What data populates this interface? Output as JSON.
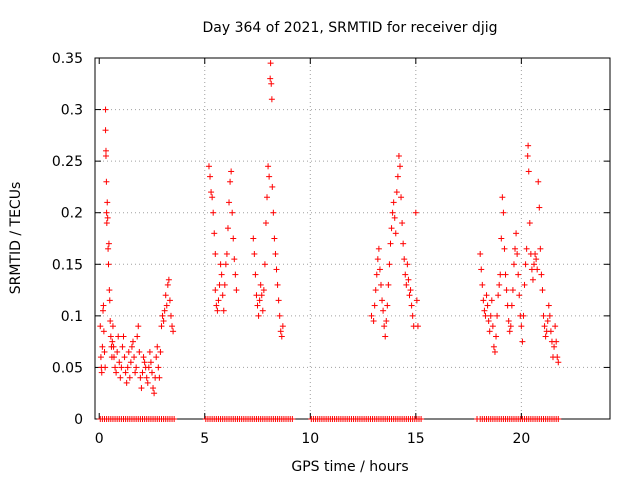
{
  "chart_data": {
    "type": "scatter",
    "title": "Day 364 of 2021, SRMTID for receiver djig",
    "xlabel": "GPS time / hours",
    "ylabel": "SRMTID / TECUs",
    "xlim": [
      -0.2,
      24.2
    ],
    "ylim": [
      0,
      0.35
    ],
    "xticks": [
      0,
      5,
      10,
      15,
      20
    ],
    "xtick_labels": [
      "0",
      "5",
      "10",
      "15",
      "20"
    ],
    "yticks": [
      0,
      0.05,
      0.1,
      0.15,
      0.2,
      0.25,
      0.3,
      0.35
    ],
    "ytick_labels": [
      "0",
      "0.05",
      "0.1",
      "0.15",
      "0.2",
      "0.25",
      "0.3",
      "0.35"
    ],
    "grid": true,
    "marker": "+",
    "marker_color": "#ff0000",
    "series": [
      {
        "name": "SRMTID",
        "points": [
          [
            0.05,
            0.09
          ],
          [
            0.08,
            0.06
          ],
          [
            0.1,
            0.05
          ],
          [
            0.12,
            0.045
          ],
          [
            0.15,
            0.07
          ],
          [
            0.18,
            0.105
          ],
          [
            0.2,
            0.11
          ],
          [
            0.22,
            0.085
          ],
          [
            0.25,
            0.065
          ],
          [
            0.28,
            0.05
          ],
          [
            0.3,
            0.3
          ],
          [
            0.3,
            0.28
          ],
          [
            0.32,
            0.26
          ],
          [
            0.32,
            0.255
          ],
          [
            0.34,
            0.23
          ],
          [
            0.35,
            0.2
          ],
          [
            0.36,
            0.19
          ],
          [
            0.38,
            0.21
          ],
          [
            0.4,
            0.195
          ],
          [
            0.42,
            0.165
          ],
          [
            0.44,
            0.15
          ],
          [
            0.46,
            0.17
          ],
          [
            0.48,
            0.125
          ],
          [
            0.5,
            0.115
          ],
          [
            0.52,
            0.095
          ],
          [
            0.55,
            0.08
          ],
          [
            0.58,
            0.07
          ],
          [
            0.6,
            0.06
          ],
          [
            0.62,
            0.075
          ],
          [
            0.65,
            0.09
          ],
          [
            0.68,
            0.07
          ],
          [
            0.7,
            0.06
          ],
          [
            0.75,
            0.05
          ],
          [
            0.8,
            0.045
          ],
          [
            0.85,
            0.065
          ],
          [
            0.9,
            0.08
          ],
          [
            0.95,
            0.055
          ],
          [
            1.0,
            0.04
          ],
          [
            1.05,
            0.05
          ],
          [
            1.1,
            0.07
          ],
          [
            1.15,
            0.08
          ],
          [
            1.2,
            0.06
          ],
          [
            1.25,
            0.045
          ],
          [
            1.3,
            0.035
          ],
          [
            1.35,
            0.05
          ],
          [
            1.4,
            0.065
          ],
          [
            1.45,
            0.04
          ],
          [
            1.5,
            0.055
          ],
          [
            1.55,
            0.07
          ],
          [
            1.6,
            0.075
          ],
          [
            1.65,
            0.06
          ],
          [
            1.7,
            0.045
          ],
          [
            1.75,
            0.05
          ],
          [
            1.8,
            0.08
          ],
          [
            1.85,
            0.09
          ],
          [
            1.9,
            0.065
          ],
          [
            1.95,
            0.04
          ],
          [
            2.0,
            0.03
          ],
          [
            2.05,
            0.045
          ],
          [
            2.1,
            0.06
          ],
          [
            2.15,
            0.055
          ],
          [
            2.2,
            0.05
          ],
          [
            2.25,
            0.04
          ],
          [
            2.3,
            0.035
          ],
          [
            2.35,
            0.05
          ],
          [
            2.4,
            0.065
          ],
          [
            2.45,
            0.055
          ],
          [
            2.5,
            0.045
          ],
          [
            2.55,
            0.03
          ],
          [
            2.6,
            0.025
          ],
          [
            2.65,
            0.04
          ],
          [
            2.7,
            0.06
          ],
          [
            2.75,
            0.07
          ],
          [
            2.8,
            0.05
          ],
          [
            2.85,
            0.04
          ],
          [
            2.9,
            0.065
          ],
          [
            2.95,
            0.09
          ],
          [
            3.0,
            0.1
          ],
          [
            3.05,
            0.095
          ],
          [
            3.1,
            0.105
          ],
          [
            3.15,
            0.12
          ],
          [
            3.2,
            0.11
          ],
          [
            3.25,
            0.13
          ],
          [
            3.3,
            0.135
          ],
          [
            3.35,
            0.115
          ],
          [
            3.4,
            0.1
          ],
          [
            3.45,
            0.09
          ],
          [
            3.5,
            0.085
          ],
          [
            5.2,
            0.245
          ],
          [
            5.25,
            0.235
          ],
          [
            5.3,
            0.22
          ],
          [
            5.35,
            0.215
          ],
          [
            5.4,
            0.2
          ],
          [
            5.45,
            0.18
          ],
          [
            5.5,
            0.16
          ],
          [
            5.5,
            0.125
          ],
          [
            5.55,
            0.11
          ],
          [
            5.6,
            0.105
          ],
          [
            5.65,
            0.115
          ],
          [
            5.7,
            0.13
          ],
          [
            5.75,
            0.15
          ],
          [
            5.8,
            0.14
          ],
          [
            5.85,
            0.12
          ],
          [
            5.9,
            0.105
          ],
          [
            5.95,
            0.13
          ],
          [
            6.0,
            0.15
          ],
          [
            6.05,
            0.16
          ],
          [
            6.1,
            0.185
          ],
          [
            6.15,
            0.21
          ],
          [
            6.2,
            0.23
          ],
          [
            6.25,
            0.24
          ],
          [
            6.3,
            0.2
          ],
          [
            6.35,
            0.175
          ],
          [
            6.4,
            0.155
          ],
          [
            6.45,
            0.14
          ],
          [
            6.5,
            0.125
          ],
          [
            7.3,
            0.175
          ],
          [
            7.35,
            0.16
          ],
          [
            7.4,
            0.14
          ],
          [
            7.45,
            0.12
          ],
          [
            7.5,
            0.11
          ],
          [
            7.55,
            0.1
          ],
          [
            7.6,
            0.115
          ],
          [
            7.65,
            0.13
          ],
          [
            7.7,
            0.12
          ],
          [
            7.75,
            0.105
          ],
          [
            7.8,
            0.125
          ],
          [
            7.85,
            0.15
          ],
          [
            7.9,
            0.19
          ],
          [
            7.95,
            0.215
          ],
          [
            8.0,
            0.245
          ],
          [
            8.05,
            0.235
          ],
          [
            8.1,
            0.33
          ],
          [
            8.12,
            0.345
          ],
          [
            8.15,
            0.325
          ],
          [
            8.18,
            0.31
          ],
          [
            8.2,
            0.225
          ],
          [
            8.25,
            0.2
          ],
          [
            8.3,
            0.175
          ],
          [
            8.35,
            0.16
          ],
          [
            8.4,
            0.145
          ],
          [
            8.45,
            0.13
          ],
          [
            8.5,
            0.115
          ],
          [
            8.55,
            0.1
          ],
          [
            8.6,
            0.085
          ],
          [
            8.65,
            0.08
          ],
          [
            8.7,
            0.09
          ],
          [
            12.9,
            0.1
          ],
          [
            13.0,
            0.095
          ],
          [
            13.05,
            0.11
          ],
          [
            13.1,
            0.125
          ],
          [
            13.15,
            0.14
          ],
          [
            13.2,
            0.155
          ],
          [
            13.25,
            0.165
          ],
          [
            13.3,
            0.145
          ],
          [
            13.35,
            0.13
          ],
          [
            13.4,
            0.115
          ],
          [
            13.45,
            0.105
          ],
          [
            13.5,
            0.09
          ],
          [
            13.55,
            0.08
          ],
          [
            13.6,
            0.095
          ],
          [
            13.65,
            0.11
          ],
          [
            13.7,
            0.13
          ],
          [
            13.75,
            0.15
          ],
          [
            13.8,
            0.17
          ],
          [
            13.85,
            0.185
          ],
          [
            13.9,
            0.2
          ],
          [
            13.95,
            0.21
          ],
          [
            14.0,
            0.195
          ],
          [
            14.05,
            0.18
          ],
          [
            14.1,
            0.22
          ],
          [
            14.15,
            0.235
          ],
          [
            14.2,
            0.255
          ],
          [
            14.25,
            0.245
          ],
          [
            14.3,
            0.215
          ],
          [
            14.35,
            0.19
          ],
          [
            14.4,
            0.17
          ],
          [
            14.45,
            0.155
          ],
          [
            14.5,
            0.14
          ],
          [
            14.55,
            0.13
          ],
          [
            14.6,
            0.15
          ],
          [
            14.65,
            0.135
          ],
          [
            14.7,
            0.12
          ],
          [
            14.75,
            0.125
          ],
          [
            14.8,
            0.11
          ],
          [
            14.85,
            0.1
          ],
          [
            14.9,
            0.09
          ],
          [
            15.0,
            0.2
          ],
          [
            15.05,
            0.115
          ],
          [
            15.1,
            0.09
          ],
          [
            18.05,
            0.16
          ],
          [
            18.1,
            0.145
          ],
          [
            18.15,
            0.13
          ],
          [
            18.2,
            0.115
          ],
          [
            18.25,
            0.105
          ],
          [
            18.3,
            0.1
          ],
          [
            18.35,
            0.12
          ],
          [
            18.4,
            0.11
          ],
          [
            18.45,
            0.095
          ],
          [
            18.5,
            0.085
          ],
          [
            18.55,
            0.1
          ],
          [
            18.6,
            0.115
          ],
          [
            18.65,
            0.09
          ],
          [
            18.7,
            0.07
          ],
          [
            18.75,
            0.065
          ],
          [
            18.8,
            0.08
          ],
          [
            18.85,
            0.1
          ],
          [
            18.9,
            0.12
          ],
          [
            18.95,
            0.13
          ],
          [
            19.0,
            0.14
          ],
          [
            19.05,
            0.175
          ],
          [
            19.1,
            0.215
          ],
          [
            19.15,
            0.2
          ],
          [
            19.2,
            0.165
          ],
          [
            19.25,
            0.14
          ],
          [
            19.3,
            0.125
          ],
          [
            19.35,
            0.11
          ],
          [
            19.4,
            0.095
          ],
          [
            19.45,
            0.085
          ],
          [
            19.5,
            0.09
          ],
          [
            19.55,
            0.11
          ],
          [
            19.6,
            0.125
          ],
          [
            19.65,
            0.15
          ],
          [
            19.7,
            0.165
          ],
          [
            19.75,
            0.18
          ],
          [
            19.8,
            0.16
          ],
          [
            19.85,
            0.14
          ],
          [
            19.9,
            0.12
          ],
          [
            19.95,
            0.1
          ],
          [
            20.0,
            0.09
          ],
          [
            20.05,
            0.075
          ],
          [
            20.1,
            0.1
          ],
          [
            20.15,
            0.13
          ],
          [
            20.2,
            0.15
          ],
          [
            20.25,
            0.165
          ],
          [
            20.3,
            0.255
          ],
          [
            20.32,
            0.265
          ],
          [
            20.35,
            0.24
          ],
          [
            20.4,
            0.19
          ],
          [
            20.45,
            0.16
          ],
          [
            20.5,
            0.145
          ],
          [
            20.55,
            0.135
          ],
          [
            20.6,
            0.15
          ],
          [
            20.65,
            0.16
          ],
          [
            20.7,
            0.155
          ],
          [
            20.75,
            0.145
          ],
          [
            20.8,
            0.23
          ],
          [
            20.85,
            0.205
          ],
          [
            20.9,
            0.165
          ],
          [
            20.95,
            0.14
          ],
          [
            21.0,
            0.125
          ],
          [
            21.05,
            0.1
          ],
          [
            21.1,
            0.09
          ],
          [
            21.15,
            0.08
          ],
          [
            21.2,
            0.085
          ],
          [
            21.25,
            0.095
          ],
          [
            21.3,
            0.11
          ],
          [
            21.35,
            0.1
          ],
          [
            21.4,
            0.085
          ],
          [
            21.45,
            0.075
          ],
          [
            21.5,
            0.06
          ],
          [
            21.55,
            0.07
          ],
          [
            21.6,
            0.09
          ],
          [
            21.65,
            0.075
          ],
          [
            21.7,
            0.06
          ],
          [
            21.75,
            0.055
          ]
        ],
        "zero_points_x": [
          0.05,
          0.15,
          0.25,
          0.35,
          0.45,
          0.55,
          0.65,
          0.75,
          0.85,
          0.95,
          1.05,
          1.15,
          1.25,
          1.35,
          1.45,
          1.55,
          1.65,
          1.75,
          1.85,
          1.95,
          2.05,
          2.15,
          2.25,
          2.35,
          2.45,
          2.55,
          2.65,
          2.75,
          2.85,
          2.95,
          3.05,
          3.15,
          3.25,
          3.35,
          3.45,
          3.55,
          5.05,
          5.15,
          5.25,
          5.35,
          5.45,
          5.55,
          5.65,
          5.75,
          5.85,
          5.95,
          6.05,
          6.15,
          6.25,
          6.35,
          6.45,
          6.55,
          6.65,
          6.75,
          6.85,
          6.95,
          7.05,
          7.15,
          7.25,
          7.35,
          7.45,
          7.55,
          7.65,
          7.75,
          7.85,
          7.95,
          8.05,
          8.15,
          8.25,
          8.35,
          8.45,
          8.55,
          8.65,
          8.75,
          8.85,
          8.95,
          9.05,
          9.15,
          10.05,
          10.15,
          10.25,
          10.35,
          10.45,
          10.55,
          10.65,
          10.75,
          10.85,
          10.95,
          11.05,
          11.15,
          11.25,
          11.35,
          11.45,
          11.55,
          11.65,
          11.75,
          11.85,
          11.95,
          12.05,
          12.15,
          12.25,
          12.35,
          12.45,
          12.55,
          12.65,
          12.75,
          12.85,
          12.95,
          13.05,
          13.15,
          13.25,
          13.35,
          13.45,
          13.55,
          13.65,
          13.75,
          13.85,
          13.95,
          14.05,
          14.15,
          14.25,
          14.35,
          14.45,
          14.55,
          14.65,
          14.75,
          14.85,
          14.95,
          15.05,
          15.15,
          15.25,
          17.9,
          18.05,
          18.15,
          18.25,
          18.35,
          18.45,
          18.55,
          18.65,
          18.75,
          18.85,
          18.95,
          19.05,
          19.15,
          19.25,
          19.35,
          19.45,
          19.55,
          19.65,
          19.75,
          19.85,
          19.95,
          20.05,
          20.15,
          20.25,
          20.35,
          20.45,
          20.55,
          20.65,
          20.75,
          20.85,
          20.95,
          21.05,
          21.15,
          21.25,
          21.35,
          21.45,
          21.55,
          21.65,
          21.75
        ]
      }
    ]
  }
}
